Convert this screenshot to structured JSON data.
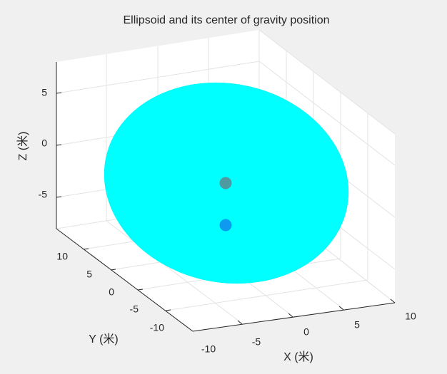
{
  "chart_data": {
    "type": "scatter3d-surface",
    "title": "Ellipsoid and its center of gravity position",
    "xlabel": "X (米)",
    "ylabel": "Y (米)",
    "zlabel": "Z (米)",
    "xlim": [
      -10,
      10
    ],
    "ylim": [
      -15,
      15
    ],
    "zlim": [
      -8,
      8
    ],
    "xticks": [
      -10,
      -5,
      0,
      5,
      10
    ],
    "yticks": [
      10,
      5,
      0,
      -5,
      -10
    ],
    "zticks": [
      5,
      0,
      -5
    ],
    "grid": true,
    "surface": {
      "name": "Ellipsoid",
      "center": [
        0,
        0,
        0
      ],
      "color": "#00ffff"
    },
    "points": [
      {
        "name": "point-upper",
        "color": "#4d9aa0"
      },
      {
        "name": "point-lower",
        "color": "#0d9af0"
      }
    ]
  },
  "colors": {
    "background": "#f0f0f0",
    "axes": "#ffffff",
    "grid": "#e3e3e3",
    "axis_line": "#262626"
  }
}
